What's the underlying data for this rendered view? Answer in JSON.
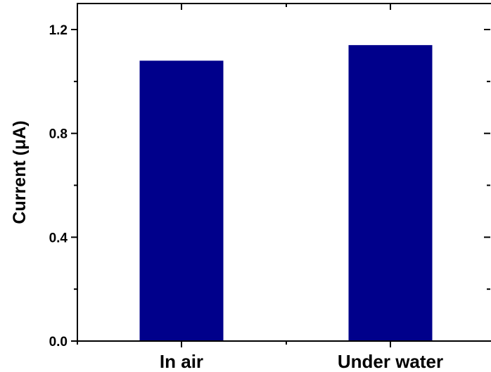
{
  "chart_data": {
    "type": "bar",
    "categories": [
      "In air",
      "Under water"
    ],
    "values": [
      1.08,
      1.14
    ],
    "title": "",
    "xlabel": "",
    "ylabel": "Current (μA)",
    "ylim": [
      0,
      1.2
    ],
    "yticks": [
      "0.0",
      "0.4",
      "0.8",
      "1.2"
    ],
    "bar_color": "#00008B",
    "grid": false,
    "legend": "none"
  }
}
